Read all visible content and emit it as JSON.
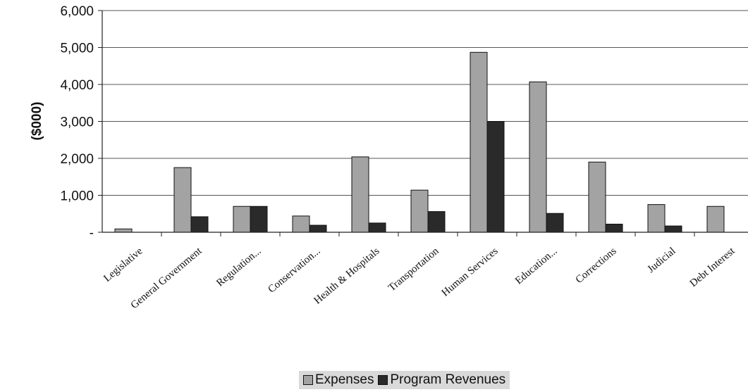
{
  "chart_data": {
    "type": "bar",
    "ylabel": "($000)",
    "xlabel": "",
    "ylim": [
      0,
      6000
    ],
    "yticks": [
      {
        "value": 0,
        "label": "-"
      },
      {
        "value": 1000,
        "label": "1,000"
      },
      {
        "value": 2000,
        "label": "2,000"
      },
      {
        "value": 3000,
        "label": "3,000"
      },
      {
        "value": 4000,
        "label": "4,000"
      },
      {
        "value": 5000,
        "label": "5,000"
      },
      {
        "value": 6000,
        "label": "6,000"
      }
    ],
    "grid": true,
    "legend_position": "bottom",
    "categories": [
      "Legislative",
      "General Government",
      "Regulation...",
      "Conservation...",
      "Health & Hospitals",
      "Transportation",
      "Human Services",
      "Education...",
      "Corrections",
      "Judicial",
      "Debt Interest"
    ],
    "series": [
      {
        "name": "Expenses",
        "color": "#a3a3a3",
        "values": [
          90,
          1750,
          700,
          440,
          2040,
          1140,
          4870,
          4070,
          1900,
          750,
          700
        ]
      },
      {
        "name": "Program Revenues",
        "color": "#2a2a2a",
        "values": [
          0,
          420,
          700,
          190,
          250,
          560,
          3000,
          510,
          220,
          170,
          0
        ]
      }
    ]
  }
}
